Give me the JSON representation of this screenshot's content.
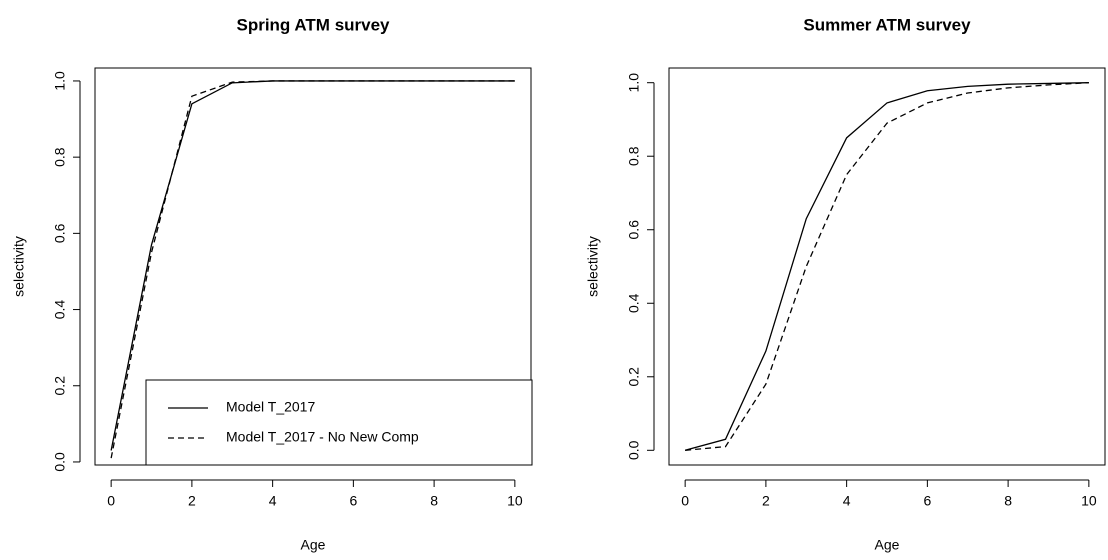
{
  "chart_data": [
    {
      "type": "line",
      "title": "Spring ATM survey",
      "xlabel": "Age",
      "ylabel": "selectivity",
      "x": [
        0,
        1,
        2,
        3,
        4,
        5,
        6,
        7,
        8,
        9,
        10
      ],
      "series": [
        {
          "name": "Model T_2017",
          "color": "#000000",
          "line_style": "solid",
          "values": [
            0.03,
            0.57,
            0.94,
            0.995,
            1.0,
            1.0,
            1.0,
            1.0,
            1.0,
            1.0,
            1.0
          ]
        },
        {
          "name": "Model T_2017 - No New Comp",
          "color": "#000000",
          "line_style": "dashed",
          "values": [
            0.01,
            0.55,
            0.96,
            0.997,
            1.0,
            1.0,
            1.0,
            1.0,
            1.0,
            1.0,
            1.0
          ]
        }
      ],
      "xlim": [
        -0.4,
        10.4
      ],
      "xticks": [
        0,
        2,
        4,
        6,
        8,
        10
      ],
      "ylim": [
        -0.008,
        1.034
      ],
      "yticks": [
        {
          "value": 0,
          "label": "0.0"
        },
        0.2,
        0.4,
        0.6,
        0.8,
        {
          "value": 1,
          "label": "1.0"
        }
      ],
      "legend": "bottom-right"
    },
    {
      "type": "line",
      "title": "Summer ATM survey",
      "xlabel": "Age",
      "ylabel": "selectivity",
      "x": [
        0,
        1,
        2,
        3,
        4,
        5,
        6,
        7,
        8,
        9,
        10
      ],
      "series": [
        {
          "name": "Model T_2017",
          "color": "#000000",
          "line_style": "solid",
          "values": [
            0.0,
            0.03,
            0.27,
            0.63,
            0.85,
            0.945,
            0.978,
            0.99,
            0.996,
            0.998,
            1.0
          ]
        },
        {
          "name": "Model T_2017 - No New Comp",
          "color": "#000000",
          "line_style": "dashed",
          "values": [
            0.0,
            0.01,
            0.18,
            0.5,
            0.75,
            0.89,
            0.945,
            0.972,
            0.986,
            0.994,
            1.0
          ]
        }
      ],
      "xlim": [
        -0.4,
        10.4
      ],
      "xticks": [
        0,
        2,
        4,
        6,
        8,
        10
      ],
      "ylim": [
        -0.04,
        1.04
      ],
      "yticks": [
        {
          "value": 0,
          "label": "0.0"
        },
        0.2,
        0.4,
        0.6,
        0.8,
        {
          "value": 1,
          "label": "1.0"
        }
      ]
    }
  ]
}
